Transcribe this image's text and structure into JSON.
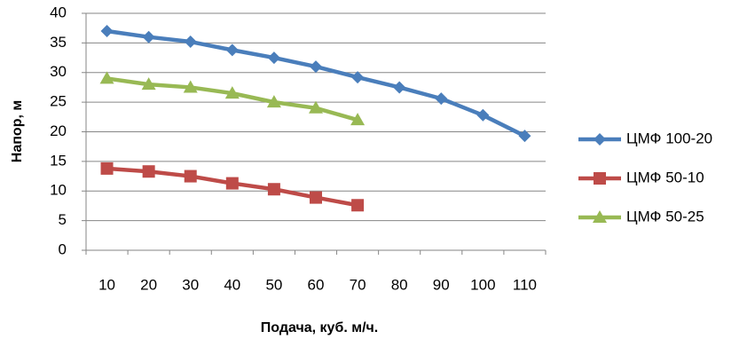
{
  "chart_data": {
    "type": "line",
    "x_label": "Подача, куб. м/ч.",
    "y_label": "Напор, м",
    "categories": [
      "10",
      "20",
      "30",
      "40",
      "50",
      "60",
      "70",
      "80",
      "90",
      "100",
      "110"
    ],
    "series": [
      {
        "name": "ЦМФ 100-20",
        "color": "#4a7ebb",
        "marker": "diamond",
        "values": [
          37,
          36,
          35.2,
          33.8,
          32.5,
          31,
          29.2,
          27.5,
          25.6,
          22.8,
          19.3
        ]
      },
      {
        "name": "ЦМФ 50-10",
        "color": "#be4b48",
        "marker": "square",
        "values": [
          13.8,
          13.3,
          12.5,
          11.3,
          10.3,
          8.9,
          7.6,
          null,
          null,
          null,
          null
        ]
      },
      {
        "name": "ЦМФ 50-25",
        "color": "#98b954",
        "marker": "triangle",
        "values": [
          29,
          28,
          27.5,
          26.5,
          25,
          24,
          22,
          null,
          null,
          null,
          null
        ]
      }
    ],
    "ylim": [
      0,
      40
    ],
    "yticks": [
      0,
      5,
      10,
      15,
      20,
      25,
      30,
      35,
      40
    ],
    "grid": true,
    "legend": "right"
  }
}
